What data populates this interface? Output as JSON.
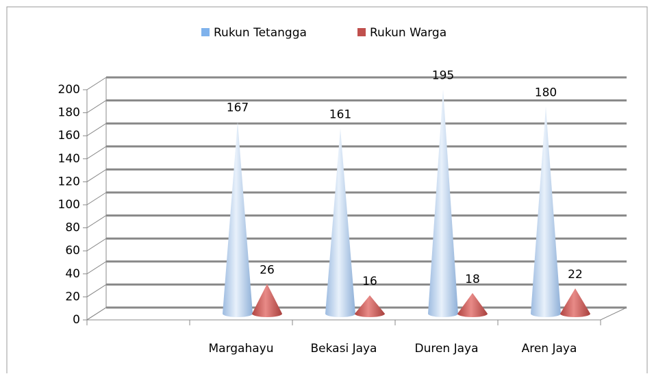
{
  "chart_data": {
    "type": "cone",
    "categories": [
      null,
      "Margahayu",
      "Bekasi Jaya",
      "Duren Jaya",
      "Aren Jaya"
    ],
    "series": [
      {
        "name": "Rukun Tetangga",
        "color": "#7fb2ec",
        "values": [
          null,
          167,
          161,
          195,
          180
        ]
      },
      {
        "name": "Rukun Warga",
        "color": "#c0504d",
        "values": [
          null,
          26,
          16,
          18,
          22
        ]
      }
    ],
    "ylim": [
      0,
      200
    ],
    "yticks": [
      0,
      20,
      40,
      60,
      80,
      100,
      120,
      140,
      160,
      180,
      200
    ],
    "grid": true,
    "legend": "top"
  }
}
